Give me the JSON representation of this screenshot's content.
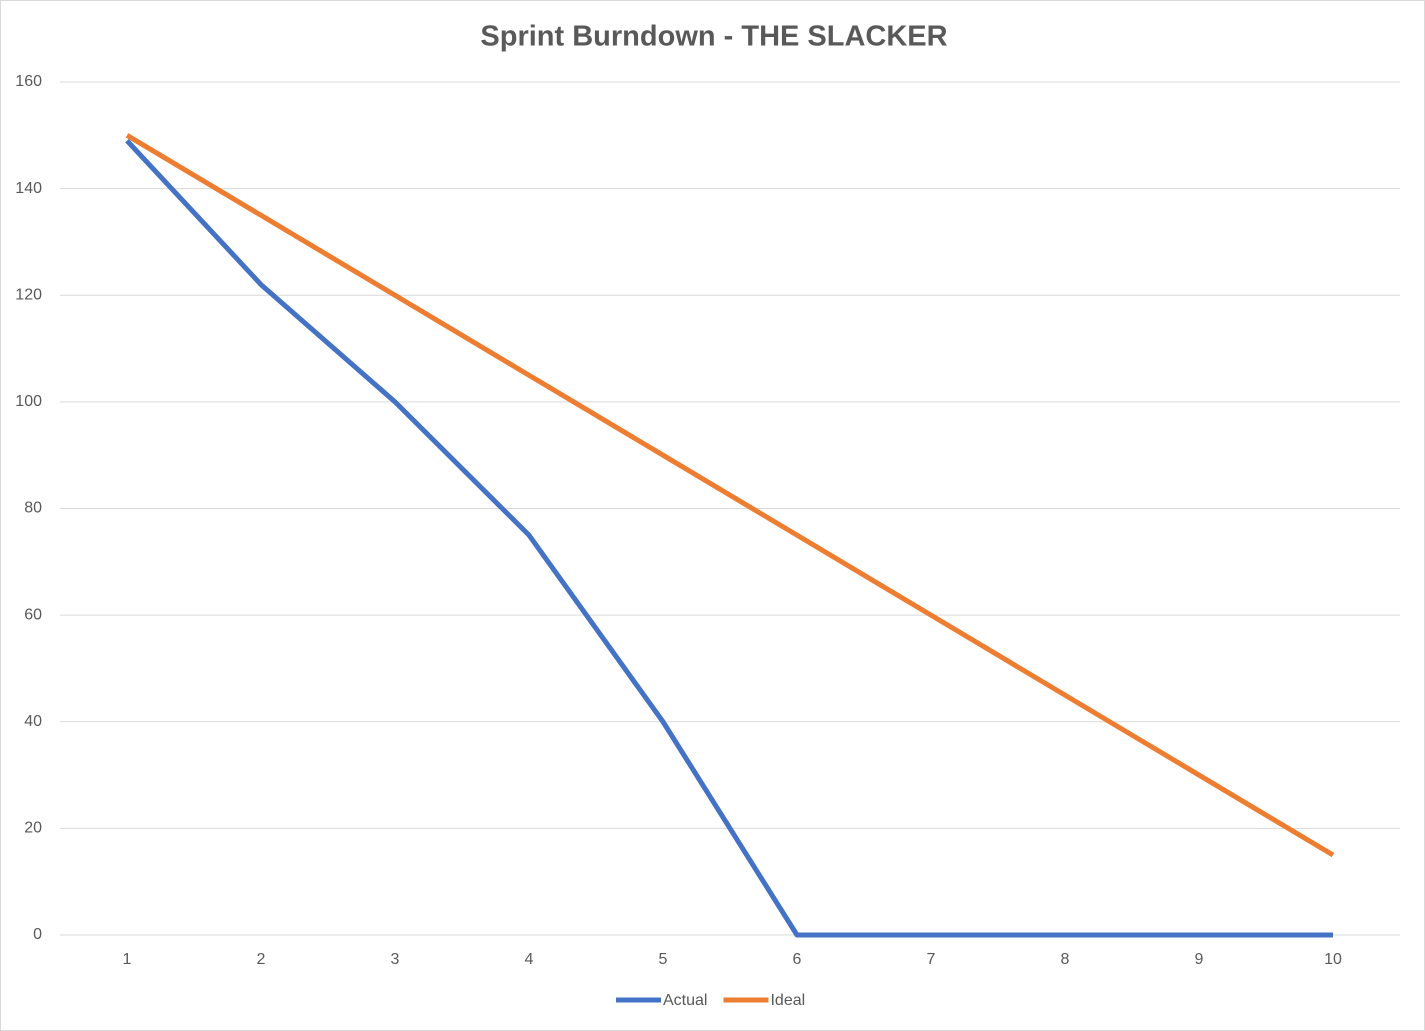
{
  "chart_data": {
    "type": "line",
    "title": "Sprint Burndown - THE SLACKER",
    "categories": [
      "1",
      "2",
      "3",
      "4",
      "5",
      "6",
      "7",
      "8",
      "9",
      "10"
    ],
    "series": [
      {
        "name": "Actual",
        "color": "#4472c4",
        "values": [
          149,
          122,
          100,
          75,
          40,
          0,
          0,
          0,
          0,
          0
        ]
      },
      {
        "name": "Ideal",
        "color": "#ed7d31",
        "values": [
          150,
          135,
          120,
          105,
          90,
          75,
          60,
          45,
          30,
          15
        ]
      }
    ],
    "ylim": [
      0,
      160
    ],
    "yticks": [
      0,
      20,
      40,
      60,
      80,
      100,
      120,
      140,
      160
    ],
    "grid": true,
    "legend": "bottom"
  }
}
